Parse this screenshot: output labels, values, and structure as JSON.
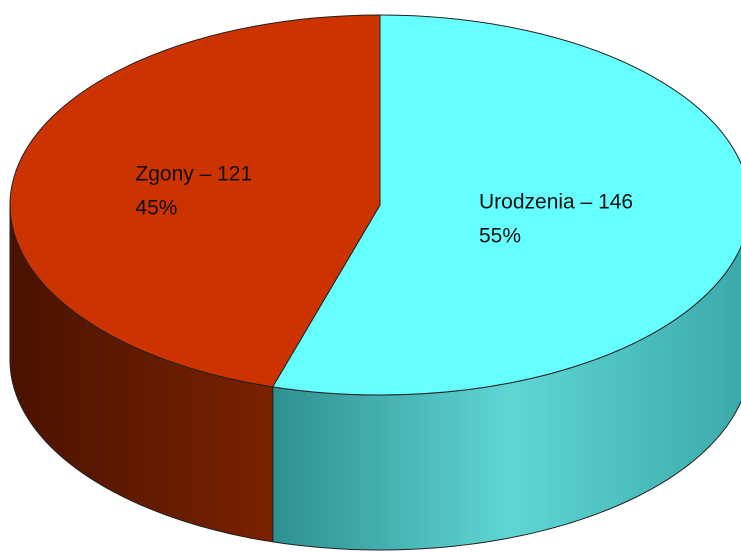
{
  "chart_data": {
    "type": "pie3d",
    "labels": [
      "Urodzenia – 146",
      "Zgony – 121"
    ],
    "values": [
      146,
      121
    ],
    "percents": [
      55,
      45
    ],
    "percent_labels": [
      "55%",
      "45%"
    ],
    "colors": [
      "#66ffff",
      "#cc3300"
    ],
    "side_colors": [
      "#4cc4c4",
      "#6e1c00"
    ]
  }
}
